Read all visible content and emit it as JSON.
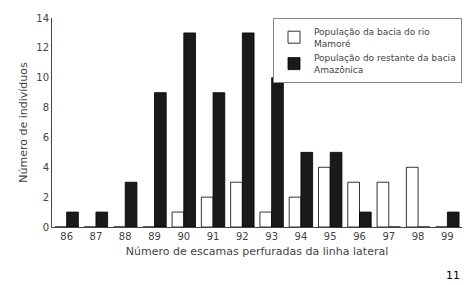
{
  "chart_data": {
    "type": "bar",
    "xlabel": "Número de escamas perfuradas da linha lateral",
    "ylabel": "Número de indivíduos",
    "categories": [
      "86",
      "87",
      "88",
      "89",
      "90",
      "91",
      "92",
      "93",
      "94",
      "95",
      "96",
      "97",
      "98",
      "99"
    ],
    "series": [
      {
        "name": "População da bacia do rio\nMamoré",
        "color": "#ffffff",
        "values": [
          0,
          0,
          0,
          0,
          1,
          2,
          3,
          1,
          2,
          4,
          3,
          3,
          4,
          0
        ]
      },
      {
        "name": "População do restante da bacia\nAmazônica",
        "color": "#1a1a1a",
        "values": [
          1,
          1,
          3,
          9,
          13,
          9,
          13,
          10,
          5,
          5,
          1,
          0,
          0,
          1
        ]
      }
    ],
    "ylim": [
      0,
      14
    ],
    "yticks": [
      0,
      2,
      4,
      6,
      8,
      10,
      12,
      14
    ],
    "grid": false,
    "legend": "upper right",
    "annotations": [
      "11"
    ]
  }
}
